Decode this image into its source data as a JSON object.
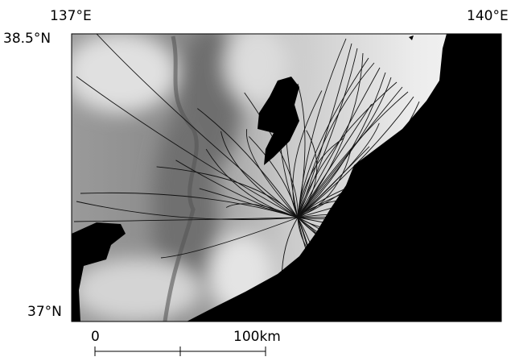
{
  "map": {
    "lon_labels": [
      "137°E",
      "140°E"
    ],
    "lat_labels": [
      "38.5°N",
      "37°N"
    ],
    "scale_bar": {
      "start_label": "0",
      "end_label": "100km"
    }
  }
}
